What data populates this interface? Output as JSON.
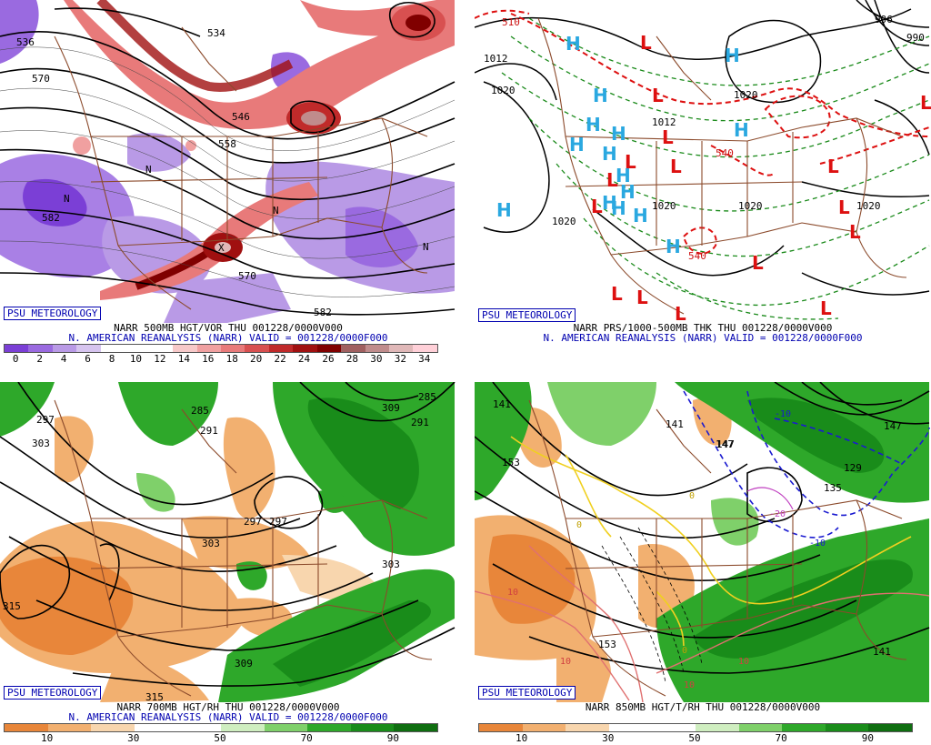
{
  "panels": [
    {
      "id": "p500",
      "badge": "PSU METEOROLOGY",
      "title": "NARR 500MB HGT/VOR THU 001228/0000V000",
      "subtitle": "N. AMERICAN REANALYSIS (NARR) VALID = 001228/0000F000",
      "legend": {
        "labels": [
          "0",
          "2",
          "4",
          "6",
          "8",
          "10",
          "12",
          "14",
          "16",
          "18",
          "20",
          "22",
          "24",
          "26",
          "28",
          "30",
          "32",
          "34"
        ],
        "colors": [
          "#7b3fd6",
          "#9a6ae0",
          "#b99ae6",
          "#d6c4ef",
          "#ffffff",
          "#ffffff",
          "#ffffff",
          "#f7c9c9",
          "#f0a0a0",
          "#e87a7a",
          "#d85050",
          "#c02a2a",
          "#a01010",
          "#800000",
          "#a06060",
          "#c08c8c",
          "#e0b8b8",
          "#ffd0d8"
        ]
      },
      "contour_labels": [
        "536",
        "534",
        "570",
        "546",
        "558",
        "582",
        "570",
        "582"
      ],
      "symbols": [
        "N",
        "N",
        "N",
        "N",
        "X"
      ]
    },
    {
      "id": "pprs",
      "badge": "PSU METEOROLOGY",
      "title": "NARR PRS/1000-500MB THK THU 001228/0000V000",
      "subtitle": "N. AMERICAN REANALYSIS (NARR) VALID = 001228/0000F000",
      "contour_labels": [
        "1012",
        "1020",
        "1012",
        "1020",
        "1020",
        "1020",
        "1020",
        "1020",
        "990",
        "996",
        "540",
        "540",
        "510"
      ],
      "highs": [
        "H",
        "H",
        "H",
        "H",
        "H",
        "H",
        "H",
        "H",
        "H",
        "H",
        "H",
        "H",
        "H",
        "H",
        "H"
      ],
      "lows": [
        "L",
        "L",
        "L",
        "L",
        "L",
        "L",
        "L",
        "L",
        "L",
        "L",
        "L",
        "L",
        "L",
        "L",
        "L",
        "L"
      ]
    },
    {
      "id": "p700",
      "badge": "PSU METEOROLOGY",
      "title": "NARR 700MB HGT/RH THU 001228/0000V000",
      "subtitle": "N. AMERICAN REANALYSIS (NARR) VALID = 001228/0000F000",
      "legend": {
        "labels": [
          "10",
          "30",
          "50",
          "70",
          "90"
        ],
        "colors": [
          "#e8863a",
          "#f2b070",
          "#f8d6ae",
          "#ffffff",
          "#ffffff",
          "#cfeec0",
          "#7fd06a",
          "#2ea82a",
          "#198c1a",
          "#0f6e10"
        ]
      },
      "contour_labels": [
        "285",
        "291",
        "297",
        "303",
        "309",
        "315",
        "285",
        "291",
        "297",
        "303",
        "309",
        "315",
        "303",
        "297"
      ]
    },
    {
      "id": "p850",
      "badge": "PSU METEOROLOGY",
      "title": "NARR 850MB HGT/T/RH THU 001228/0000V000",
      "subtitle": "",
      "legend": {
        "labels": [
          "10",
          "30",
          "50",
          "70",
          "90"
        ],
        "colors": [
          "#e8863a",
          "#f2b070",
          "#f8d6ae",
          "#ffffff",
          "#ffffff",
          "#cfeec0",
          "#7fd06a",
          "#2ea82a",
          "#198c1a",
          "#0f6e10"
        ]
      },
      "contour_labels": [
        "141",
        "147",
        "153",
        "135",
        "129",
        "141",
        "147",
        "153",
        "141",
        "147"
      ],
      "temp_labels": [
        "-10",
        "-20",
        "-10",
        "0",
        "0",
        "0",
        "10",
        "10",
        "10",
        "10"
      ]
    }
  ]
}
